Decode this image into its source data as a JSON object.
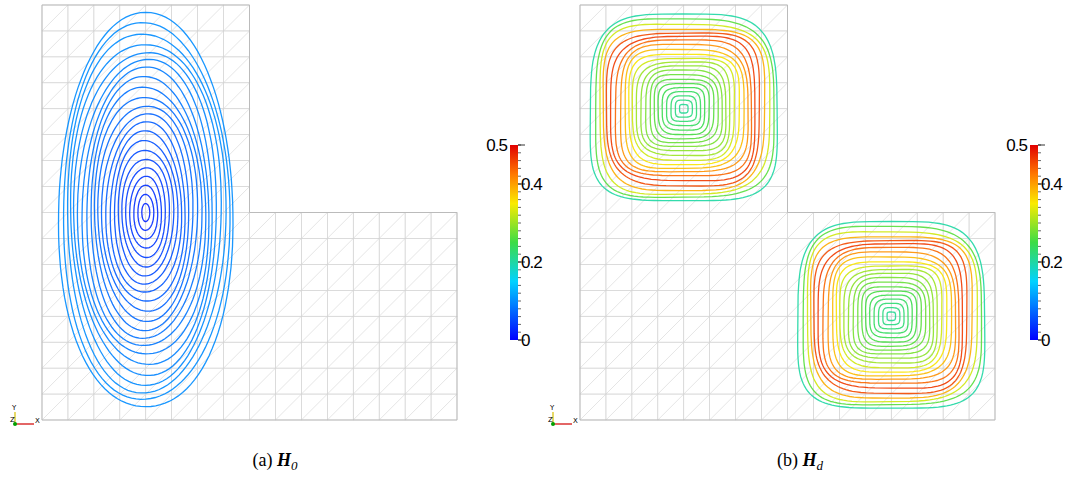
{
  "chart_data": {
    "type": "streamlines",
    "domain": [
      [
        0,
        0
      ],
      [
        2,
        0
      ],
      [
        2,
        1
      ],
      [
        1,
        1
      ],
      [
        1,
        2
      ],
      [
        0,
        2
      ]
    ],
    "colorbar": {
      "range": [
        0,
        0.5
      ],
      "ticks": [
        0,
        0.2,
        0.4,
        0.5
      ]
    },
    "panels": [
      {
        "label": "(a)",
        "symbol": "H",
        "subscript": "0",
        "axes_triad": [
          "Y",
          "Z",
          "X"
        ],
        "vortices": [
          {
            "center": [
              0.5,
              1.0
            ],
            "half_size": [
              0.42,
              0.95
            ],
            "shape": "ellipse",
            "magnitude_profile": [
              [
                0,
                0.02
              ],
              [
                0.5,
                0.07
              ],
              [
                0.9,
                0.1
              ],
              [
                1,
                0.1
              ]
            ]
          }
        ]
      },
      {
        "label": "(b)",
        "symbol": "H",
        "subscript": "d",
        "axes_triad": [
          "Y",
          "Z",
          "X"
        ],
        "vortices": [
          {
            "center": [
              0.5,
              1.5
            ],
            "half_size": [
              0.45,
              0.45
            ],
            "shape": "rounded_square",
            "magnitude_profile": [
              [
                0,
                0.2
              ],
              [
                0.5,
                0.3
              ],
              [
                0.8,
                0.48
              ],
              [
                1,
                0.2
              ]
            ]
          },
          {
            "center": [
              1.5,
              0.5
            ],
            "half_size": [
              0.45,
              0.45
            ],
            "shape": "rounded_square",
            "magnitude_profile": [
              [
                0,
                0.2
              ],
              [
                0.5,
                0.3
              ],
              [
                0.8,
                0.48
              ],
              [
                1,
                0.2
              ]
            ]
          }
        ]
      }
    ]
  }
}
